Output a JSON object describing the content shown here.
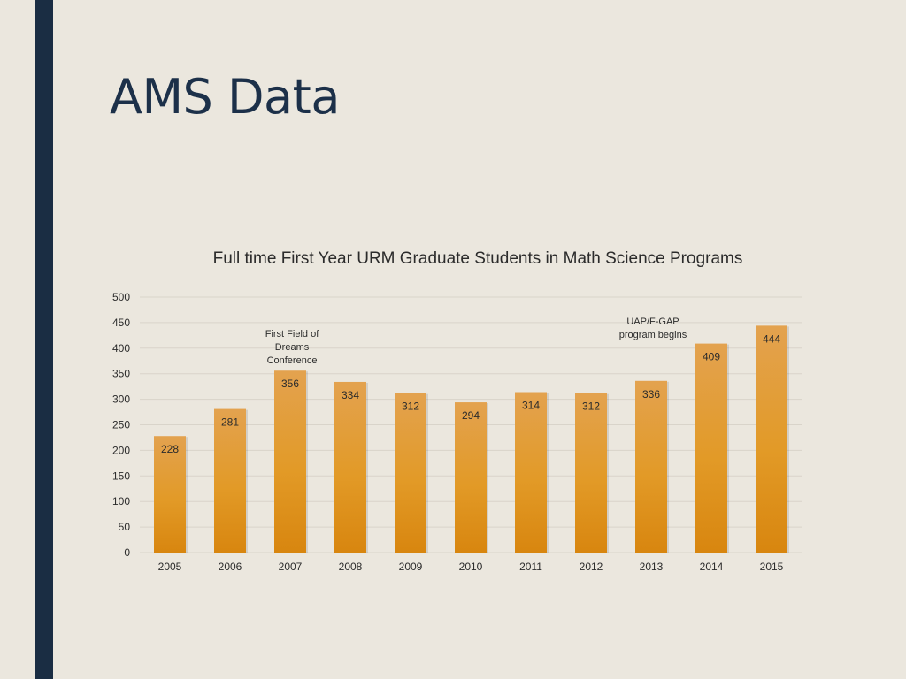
{
  "slide": {
    "title": "AMS Data"
  },
  "colors": {
    "sidebar": "#1a2d43",
    "background": "#ebe7de",
    "bar_top": "#e3a24f",
    "bar_mid": "#e29a27",
    "bar_bottom": "#d8860f",
    "grid": "#d9d4ca",
    "text": "#2b2b2b"
  },
  "chart_data": {
    "type": "bar",
    "title": "Full time First Year URM Graduate Students in Math Science Programs",
    "categories": [
      "2005",
      "2006",
      "2007",
      "2008",
      "2009",
      "2010",
      "2011",
      "2012",
      "2013",
      "2014",
      "2015"
    ],
    "values": [
      228,
      281,
      356,
      334,
      312,
      294,
      314,
      312,
      336,
      409,
      444
    ],
    "data_labels": [
      "228",
      "281",
      "356",
      "334",
      "312",
      "294",
      "314",
      "312",
      "336",
      "409",
      "444"
    ],
    "ylim": [
      0,
      500
    ],
    "yticks": [
      0,
      50,
      100,
      150,
      200,
      250,
      300,
      350,
      400,
      450,
      500
    ],
    "grid": true,
    "legend": "none",
    "annotations": [
      {
        "category": "2007",
        "lines": [
          "First Field of",
          "Dreams",
          "Conference"
        ]
      },
      {
        "category": "2013",
        "lines": [
          "UAP/F-GAP",
          "program begins"
        ]
      }
    ]
  }
}
